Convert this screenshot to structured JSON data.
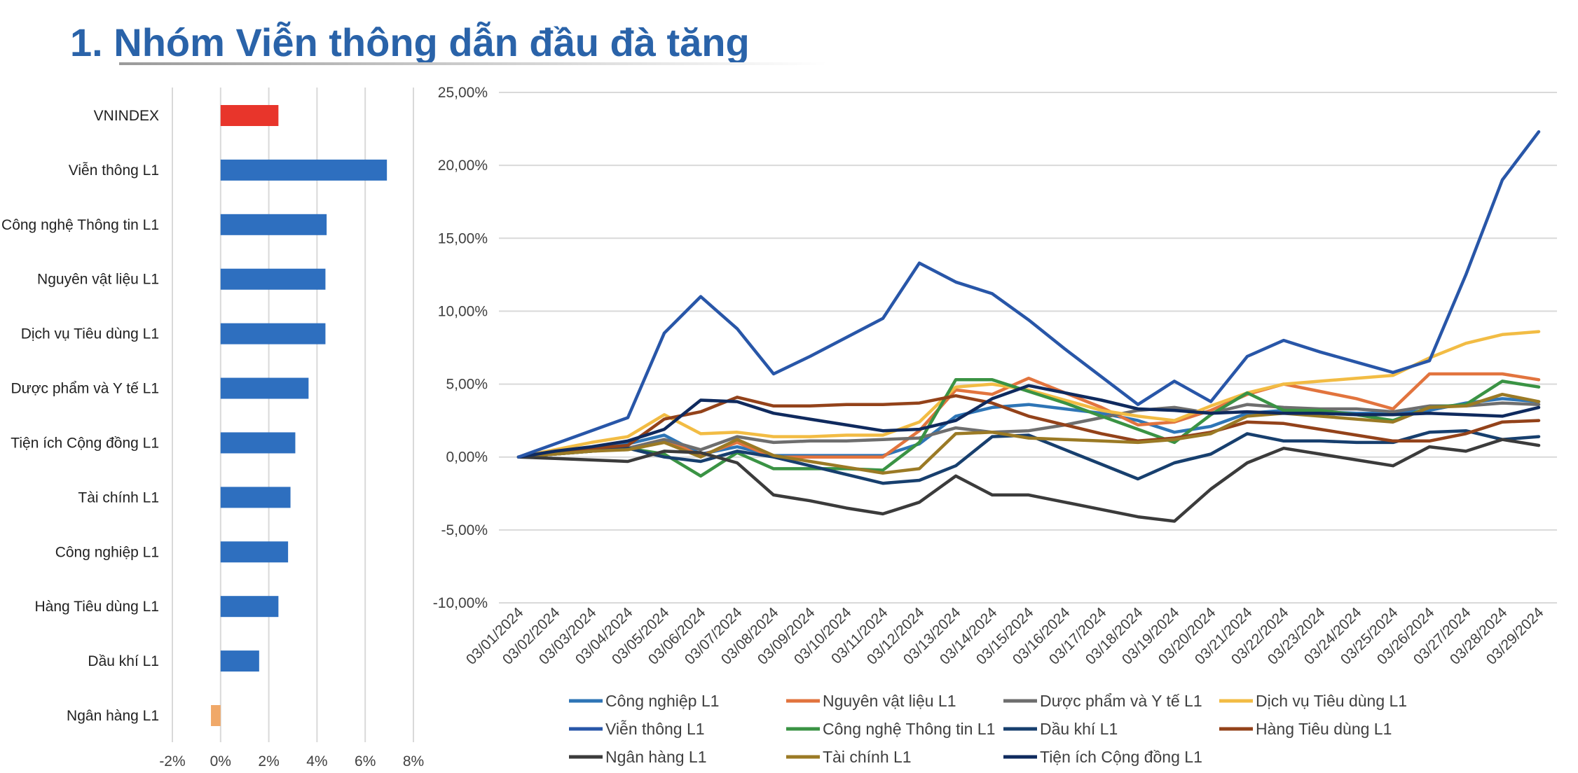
{
  "title": "1. Nhóm Viễn thông dẫn đầu đà tăng",
  "bar_colors": {
    "vnindex": "#e8352b",
    "positive": "#2e6fbf",
    "negative": "#f0a868"
  },
  "chart_data": [
    {
      "type": "bar",
      "orientation": "horizontal",
      "categories": [
        "VNINDEX",
        "Viễn thông L1",
        "Công nghệ Thông tin L1",
        "Nguyên vật liệu L1",
        "Dịch vụ Tiêu dùng L1",
        "Dược phẩm và Y tế L1",
        "Tiện ích Cộng đồng L1",
        "Tài chính L1",
        "Công nghiệp L1",
        "Hàng Tiêu dùng L1",
        "Dầu khí  L1",
        "Ngân hàng L1"
      ],
      "values": [
        2.4,
        6.9,
        4.4,
        4.35,
        4.35,
        3.65,
        3.1,
        2.9,
        2.8,
        2.4,
        1.6,
        -0.4
      ],
      "xlim": [
        -2,
        8
      ],
      "xticks": [
        "-2%",
        "0%",
        "2%",
        "4%",
        "6%",
        "8%"
      ],
      "grid": true
    },
    {
      "type": "line",
      "x": [
        "03/01/2024",
        "03/02/2024",
        "03/03/2024",
        "03/04/2024",
        "03/05/2024",
        "03/06/2024",
        "03/07/2024",
        "03/08/2024",
        "03/09/2024",
        "03/10/2024",
        "03/11/2024",
        "03/12/2024",
        "03/13/2024",
        "03/14/2024",
        "03/15/2024",
        "03/16/2024",
        "03/17/2024",
        "03/18/2024",
        "03/19/2024",
        "03/20/2024",
        "03/21/2024",
        "03/22/2024",
        "03/23/2024",
        "03/24/2024",
        "03/25/2024",
        "03/26/2024",
        "03/27/2024",
        "03/28/2024",
        "03/29/2024"
      ],
      "ylim": [
        -10,
        25
      ],
      "yticks": [
        "-10,00%",
        "-5,00%",
        "0,00%",
        "5,00%",
        "10,00%",
        "15,00%",
        "20,00%",
        "25,00%"
      ],
      "grid": true,
      "legend_position": "bottom",
      "series": [
        {
          "name": "Công nghiệp  L1",
          "color": "#2e75b6",
          "values": [
            0,
            0.3,
            0.6,
            0.9,
            1.5,
            0.2,
            0.7,
            0.1,
            0.1,
            0.1,
            0.1,
            0.9,
            2.8,
            3.4,
            3.6,
            3.3,
            3,
            2.5,
            1.7,
            2.1,
            3,
            3.2,
            3.1,
            3,
            3,
            3.2,
            3.7,
            4,
            3.8
          ]
        },
        {
          "name": "Nguyên vật liệu L1",
          "color": "#e2743e",
          "values": [
            0,
            0.2,
            0.4,
            0.6,
            1.2,
            0.1,
            1,
            0,
            0,
            0,
            0,
            1.8,
            4.6,
            4.3,
            5.4,
            4.4,
            3.4,
            2.2,
            2.4,
            3.2,
            4.3,
            5,
            4.5,
            4,
            3.3,
            5.7,
            5.7,
            5.7,
            5.3
          ]
        },
        {
          "name": "Dược phẩm và Y tế L1",
          "color": "#6e6e6e",
          "values": [
            0,
            0.2,
            0.4,
            0.6,
            1.2,
            0.5,
            1.4,
            1,
            1.1,
            1.1,
            1.2,
            1.3,
            2,
            1.7,
            1.8,
            2.2,
            2.7,
            3.2,
            3.4,
            3,
            3.6,
            3.4,
            3.3,
            3.3,
            3.1,
            3.5,
            3.5,
            3.7,
            3.6
          ]
        },
        {
          "name": "Dịch vụ Tiêu dùng L1",
          "color": "#f2bc44",
          "values": [
            0,
            0.5,
            1,
            1.4,
            2.9,
            1.6,
            1.7,
            1.4,
            1.4,
            1.5,
            1.5,
            2.4,
            4.8,
            5,
            4.6,
            3.9,
            3.2,
            2.8,
            2.5,
            3.5,
            4.4,
            5,
            5.2,
            5.4,
            5.6,
            6.8,
            7.8,
            8.4,
            8.6
          ]
        },
        {
          "name": "Viễn thông L1",
          "color": "#2856a8",
          "values": [
            0,
            0.9,
            1.8,
            2.7,
            8.5,
            11,
            8.8,
            5.7,
            6.9,
            8.2,
            9.5,
            13.3,
            12,
            11.2,
            9.4,
            7.4,
            5.5,
            3.6,
            5.2,
            3.8,
            6.9,
            8,
            7.2,
            6.5,
            5.8,
            6.6,
            12.5,
            19,
            22.3
          ]
        },
        {
          "name": "Công nghệ  Thông tin L1",
          "color": "#3a9344",
          "values": [
            0,
            0.2,
            0.4,
            0.6,
            0.2,
            -1.3,
            0.3,
            -0.8,
            -0.8,
            -0.8,
            -0.9,
            1,
            5.3,
            5.3,
            4.5,
            3.7,
            2.8,
            1.9,
            1,
            2.9,
            4.4,
            3.2,
            3.2,
            2.9,
            2.5,
            3.4,
            3.6,
            5.2,
            4.8
          ]
        },
        {
          "name": "Dầu khí  L1",
          "color": "#173f6e",
          "values": [
            0,
            0.2,
            0.4,
            0.6,
            0,
            -0.3,
            0.4,
            0,
            -0.6,
            -1.2,
            -1.8,
            -1.6,
            -0.6,
            1.4,
            1.5,
            0.5,
            -0.5,
            -1.5,
            -0.4,
            0.2,
            1.6,
            1.1,
            1.1,
            1,
            1,
            1.7,
            1.8,
            1.2,
            1.4
          ]
        },
        {
          "name": "Hàng Tiêu dùng L1",
          "color": "#93421a",
          "values": [
            0,
            0.3,
            0.6,
            0.8,
            2.6,
            3.1,
            4.1,
            3.5,
            3.5,
            3.6,
            3.6,
            3.7,
            4.2,
            3.7,
            2.8,
            2.2,
            1.6,
            1.1,
            1.3,
            1.7,
            2.4,
            2.3,
            1.9,
            1.5,
            1.1,
            1.1,
            1.6,
            2.4,
            2.5
          ]
        },
        {
          "name": "Ngân hàng L1",
          "color": "#3b3b3b",
          "values": [
            0,
            -0.1,
            -0.2,
            -0.3,
            0.4,
            0.3,
            -0.4,
            -2.6,
            -3,
            -3.5,
            -3.9,
            -3.1,
            -1.3,
            -2.6,
            -2.6,
            -3.1,
            -3.6,
            -4.1,
            -4.4,
            -2.2,
            -0.4,
            0.6,
            0.2,
            -0.2,
            -0.6,
            0.7,
            0.4,
            1.2,
            0.8
          ]
        },
        {
          "name": "Tài chính L1",
          "color": "#9b7a25",
          "values": [
            0,
            0.2,
            0.4,
            0.5,
            1,
            0,
            1.2,
            0.1,
            -0.3,
            -0.7,
            -1.1,
            -0.8,
            1.6,
            1.7,
            1.3,
            1.2,
            1.1,
            1,
            1.2,
            1.6,
            2.8,
            3,
            2.8,
            2.6,
            2.4,
            3.4,
            3.5,
            4.3,
            3.8
          ]
        },
        {
          "name": "Tiện ích Cộng đồng L1",
          "color": "#0f2a5e",
          "values": [
            0,
            0.4,
            0.7,
            1.1,
            1.9,
            3.9,
            3.8,
            3,
            2.6,
            2.2,
            1.8,
            1.9,
            2.5,
            4,
            4.9,
            4.4,
            3.9,
            3.3,
            3.2,
            3,
            3.1,
            3,
            3,
            2.9,
            2.9,
            3,
            2.9,
            2.8,
            3.4
          ]
        }
      ]
    }
  ]
}
